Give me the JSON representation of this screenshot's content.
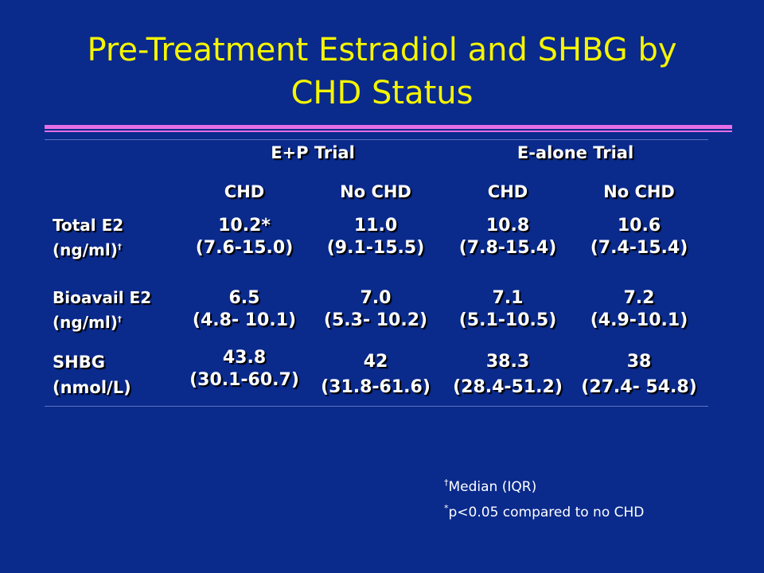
{
  "slide": {
    "title_line1": "Pre-Treatment Estradiol and SHBG by",
    "title_line2": "CHD Status"
  },
  "table": {
    "groups": [
      "E+P Trial",
      "E-alone Trial"
    ],
    "columns": [
      "CHD",
      "No CHD",
      "CHD",
      "No CHD"
    ],
    "rows": [
      {
        "label_line1": "Total E2",
        "label_line2": "(ng/ml)",
        "label_mark": "†",
        "values": [
          {
            "median": "10.2*",
            "iqr": "(7.6-15.0)"
          },
          {
            "median": "11.0",
            "iqr": "(9.1-15.5)"
          },
          {
            "median": "10.8",
            "iqr": "(7.8-15.4)"
          },
          {
            "median": "10.6",
            "iqr": "(7.4-15.4)"
          }
        ]
      },
      {
        "label_line1": "Bioavail E2",
        "label_line2": "(ng/ml)",
        "label_mark": "†",
        "values": [
          {
            "median": "6.5",
            "iqr": "(4.8- 10.1)"
          },
          {
            "median": "7.0",
            "iqr": "(5.3- 10.2)"
          },
          {
            "median": "7.1",
            "iqr": "(5.1-10.5)"
          },
          {
            "median": "7.2",
            "iqr": "(4.9-10.1)"
          }
        ]
      },
      {
        "label_line1": "SHBG",
        "label_line2": "(nmol/L)",
        "label_mark": "",
        "values": [
          {
            "median": "43.8",
            "iqr": "(30.1-60.7)"
          },
          {
            "median": "42",
            "iqr": "(31.8-61.6)"
          },
          {
            "median": "38.3",
            "iqr": "(28.4-51.2)"
          },
          {
            "median": "38",
            "iqr": "(27.4- 54.8)"
          }
        ]
      }
    ]
  },
  "footnotes": [
    {
      "mark": "†",
      "text": "Median (IQR)"
    },
    {
      "mark": "*",
      "text": "p<0.05 compared to no CHD"
    }
  ],
  "colors": {
    "background": "#0a2a8c",
    "title": "#f5f500",
    "rule": "#e56fe5",
    "text": "#ffffff"
  }
}
